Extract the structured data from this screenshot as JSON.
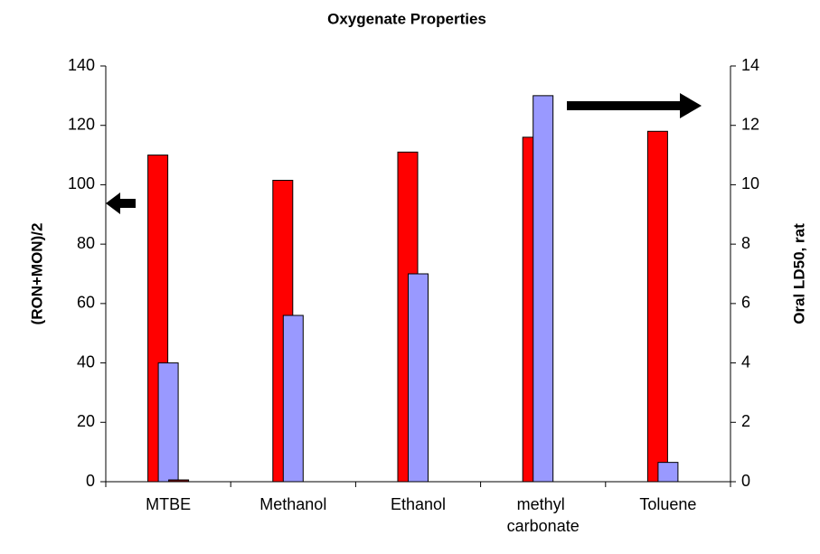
{
  "chart_data": {
    "type": "bar",
    "title": "Oxygenate Properties",
    "categories": [
      "MTBE",
      "Methanol",
      "Ethanol",
      "methyl carbonate",
      "Toluene"
    ],
    "series": [
      {
        "color": "#ff0000",
        "values": [
          110,
          101.5,
          111,
          116,
          118
        ]
      },
      {
        "color": "#9999ff",
        "axis": "y2",
        "values": [
          4,
          5.6,
          7.0,
          13,
          0.65
        ]
      },
      {
        "color": "#800000",
        "values": [
          0.6,
          null,
          null,
          null,
          null
        ]
      }
    ],
    "ylabel": "(RON+MON)/2",
    "y2label": "Oral LD50, rat",
    "ylim": [
      0,
      140
    ],
    "yticks": [
      0,
      20,
      40,
      60,
      80,
      100,
      120,
      140
    ],
    "y2lim": [
      0,
      14
    ],
    "y2ticks": [
      0,
      2,
      4,
      6,
      8,
      10,
      12,
      14
    ]
  }
}
